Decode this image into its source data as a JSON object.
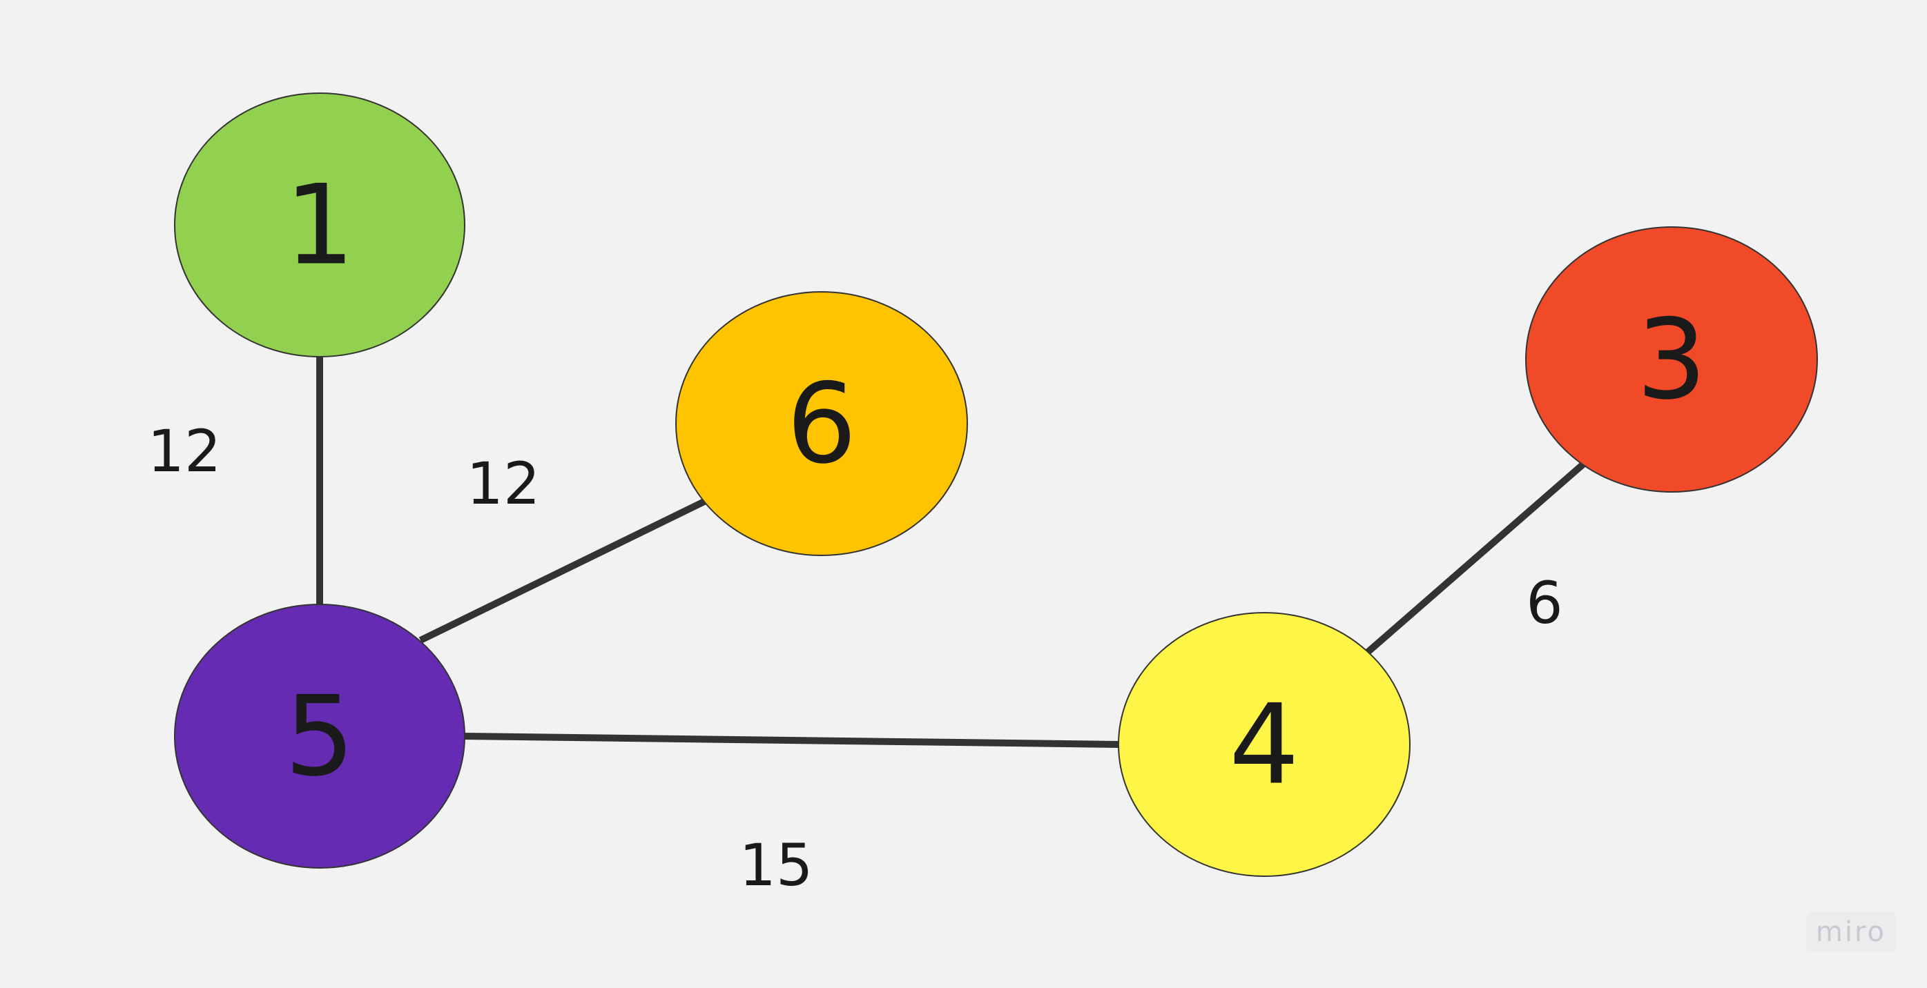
{
  "diagram": {
    "nodes": [
      {
        "id": "1",
        "label": "1",
        "color": "#92d050"
      },
      {
        "id": "6",
        "label": "6",
        "color": "#ffc400"
      },
      {
        "id": "3",
        "label": "3",
        "color": "#f04a28"
      },
      {
        "id": "5",
        "label": "5",
        "color": "#652cb3"
      },
      {
        "id": "4",
        "label": "4",
        "color": "#fff546"
      }
    ],
    "edges": [
      {
        "from": "1",
        "to": "5",
        "weight": "12"
      },
      {
        "from": "5",
        "to": "6",
        "weight": "12"
      },
      {
        "from": "5",
        "to": "4",
        "weight": "15"
      },
      {
        "from": "4",
        "to": "3",
        "weight": "6"
      }
    ]
  },
  "watermark": "miro"
}
